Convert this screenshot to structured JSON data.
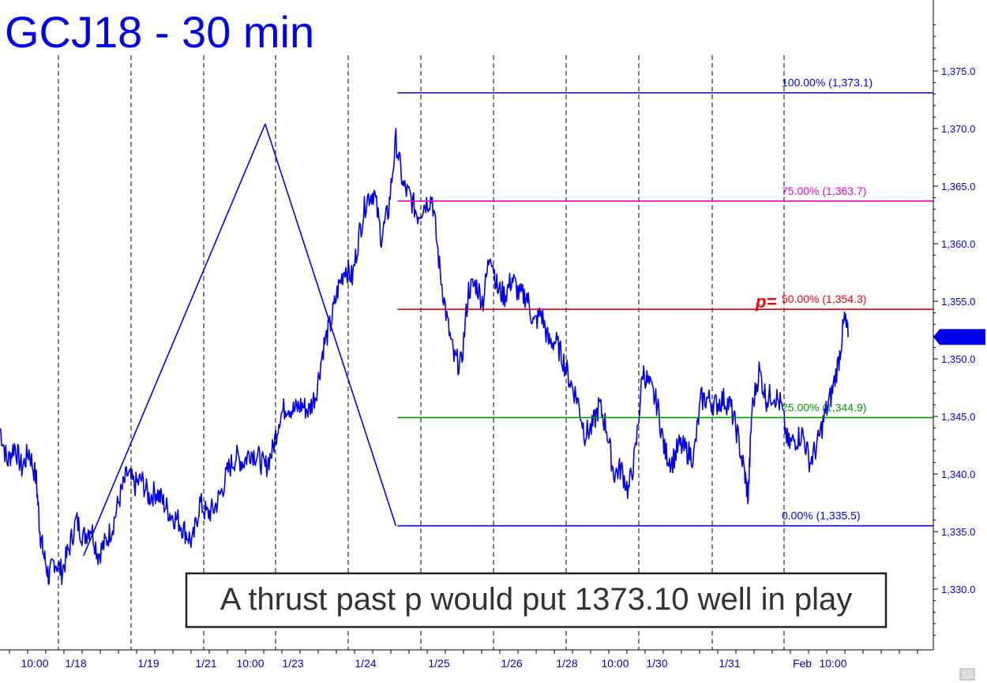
{
  "chart_data": {
    "type": "line",
    "title": "GCJ18 - 30 min",
    "ylim": [
      1324,
      1379
    ],
    "y_ticks": [
      1375.0,
      1370.0,
      1365.0,
      1360.0,
      1355.0,
      1350.0,
      1345.0,
      1340.0,
      1335.0,
      1330.0
    ],
    "y_tick_labels": [
      "1,375.0",
      "1,370.0",
      "1,365.0",
      "1,360.0",
      "1,355.0",
      "1,350.0",
      "1,345.0",
      "1,340.0",
      "1,335.0",
      "1,330.0"
    ],
    "x_tick_labels": [
      "10:00",
      "1/18",
      "1/19",
      "1/21",
      "10:00",
      "1/23",
      "1/24",
      "1/25",
      "1/26",
      "1/28",
      "10:00",
      "1/30",
      "1/31",
      "Feb",
      "10:00"
    ],
    "last_price": 1351.9,
    "last_price_label": "1,351.9",
    "fib_levels": [
      {
        "pct": "100.00%",
        "value": 1373.1,
        "label": "100.00% (1,373.1)",
        "color": "#0000ee"
      },
      {
        "pct": "75.00%",
        "value": 1363.7,
        "label": "75.00% (1,363.7)",
        "color": "#ee00cc"
      },
      {
        "pct": "50.00%",
        "value": 1354.3,
        "label": "50.00% (1,354.3)",
        "color": "#ee0000",
        "marker": "p="
      },
      {
        "pct": "25.00%",
        "value": 1344.9,
        "label": "25.00% (1,344.9)",
        "color": "#009900"
      },
      {
        "pct": "0.00%",
        "value": 1335.5,
        "label": "0.00% (1,335.5)",
        "color": "#0000ee"
      }
    ],
    "swing_points": [
      {
        "session": 2.3,
        "value": 1332.9
      },
      {
        "session": 7.3,
        "value": 1370.4
      },
      {
        "session": 10.9,
        "value": 1335.5
      }
    ],
    "price_path": [
      [
        0.0,
        1344.0
      ],
      [
        0.2,
        1341.0
      ],
      [
        0.4,
        1342.5
      ],
      [
        0.6,
        1340.5
      ],
      [
        0.8,
        1342.0
      ],
      [
        1.0,
        1339.5
      ],
      [
        1.1,
        1335.0
      ],
      [
        1.2,
        1333.0
      ],
      [
        1.35,
        1331.0
      ],
      [
        1.5,
        1332.5
      ],
      [
        1.7,
        1331.5
      ],
      [
        1.9,
        1333.5
      ],
      [
        2.1,
        1336.0
      ],
      [
        2.3,
        1334.5
      ],
      [
        2.5,
        1335.5
      ],
      [
        2.7,
        1333.0
      ],
      [
        2.9,
        1334.0
      ],
      [
        3.1,
        1335.5
      ],
      [
        3.3,
        1338.0
      ],
      [
        3.5,
        1340.0
      ],
      [
        3.7,
        1339.0
      ],
      [
        3.9,
        1339.5
      ],
      [
        4.1,
        1338.0
      ],
      [
        4.3,
        1338.5
      ],
      [
        4.5,
        1337.5
      ],
      [
        4.7,
        1336.5
      ],
      [
        4.9,
        1336.0
      ],
      [
        5.1,
        1335.0
      ],
      [
        5.3,
        1334.0
      ],
      [
        5.5,
        1337.5
      ],
      [
        5.7,
        1336.5
      ],
      [
        5.9,
        1337.0
      ],
      [
        6.1,
        1338.5
      ],
      [
        6.3,
        1340.5
      ],
      [
        6.5,
        1341.5
      ],
      [
        6.7,
        1341.0
      ],
      [
        6.9,
        1342.0
      ],
      [
        7.1,
        1341.5
      ],
      [
        7.3,
        1340.5
      ],
      [
        7.5,
        1342.0
      ],
      [
        7.7,
        1345.0
      ],
      [
        7.9,
        1346.0
      ],
      [
        8.1,
        1345.5
      ],
      [
        8.3,
        1346.0
      ],
      [
        8.5,
        1345.5
      ],
      [
        8.7,
        1347.0
      ],
      [
        8.9,
        1351.0
      ],
      [
        9.1,
        1353.0
      ],
      [
        9.3,
        1356.0
      ],
      [
        9.5,
        1358.0
      ],
      [
        9.7,
        1357.0
      ],
      [
        9.9,
        1361.0
      ],
      [
        10.1,
        1364.0
      ],
      [
        10.3,
        1364.5
      ],
      [
        10.5,
        1360.5
      ],
      [
        10.7,
        1363.0
      ],
      [
        10.9,
        1369.0
      ],
      [
        11.1,
        1365.0
      ],
      [
        11.3,
        1364.0
      ],
      [
        11.5,
        1362.5
      ],
      [
        11.7,
        1363.5
      ],
      [
        11.9,
        1364.0
      ],
      [
        12.1,
        1358.0
      ],
      [
        12.3,
        1353.5
      ],
      [
        12.5,
        1350.0
      ],
      [
        12.7,
        1349.5
      ],
      [
        12.9,
        1356.0
      ],
      [
        13.1,
        1356.5
      ],
      [
        13.3,
        1355.0
      ],
      [
        13.5,
        1359.5
      ],
      [
        13.7,
        1356.0
      ],
      [
        13.9,
        1355.5
      ],
      [
        14.1,
        1357.0
      ],
      [
        14.3,
        1355.5
      ],
      [
        14.5,
        1355.5
      ],
      [
        14.7,
        1353.0
      ],
      [
        14.9,
        1354.0
      ],
      [
        15.1,
        1351.5
      ],
      [
        15.3,
        1351.5
      ],
      [
        15.5,
        1350.0
      ],
      [
        15.7,
        1348.0
      ],
      [
        15.9,
        1346.5
      ],
      [
        16.1,
        1343.5
      ],
      [
        16.3,
        1344.0
      ],
      [
        16.5,
        1346.0
      ],
      [
        16.7,
        1344.0
      ],
      [
        16.9,
        1340.0
      ],
      [
        17.1,
        1340.5
      ],
      [
        17.3,
        1338.5
      ],
      [
        17.5,
        1342.0
      ],
      [
        17.7,
        1349.0
      ],
      [
        17.9,
        1347.5
      ],
      [
        18.1,
        1346.0
      ],
      [
        18.3,
        1342.0
      ],
      [
        18.5,
        1341.0
      ],
      [
        18.7,
        1342.5
      ],
      [
        18.9,
        1342.0
      ],
      [
        19.1,
        1341.5
      ],
      [
        19.3,
        1346.5
      ],
      [
        19.5,
        1346.5
      ],
      [
        19.7,
        1346.0
      ],
      [
        19.9,
        1346.5
      ],
      [
        20.1,
        1346.0
      ],
      [
        20.3,
        1343.5
      ],
      [
        20.5,
        1340.0
      ],
      [
        20.6,
        1338.0
      ],
      [
        20.7,
        1345.5
      ],
      [
        20.9,
        1349.0
      ],
      [
        21.1,
        1346.5
      ],
      [
        21.3,
        1347.0
      ],
      [
        21.5,
        1346.0
      ],
      [
        21.7,
        1342.5
      ],
      [
        21.9,
        1343.0
      ],
      [
        22.1,
        1343.5
      ],
      [
        22.3,
        1341.0
      ],
      [
        22.5,
        1342.5
      ],
      [
        22.7,
        1345.0
      ],
      [
        22.9,
        1347.0
      ],
      [
        23.1,
        1350.0
      ],
      [
        23.25,
        1353.5
      ],
      [
        23.35,
        1351.9
      ]
    ],
    "annotation": "A thrust past p would put 1373.10 well in play"
  }
}
